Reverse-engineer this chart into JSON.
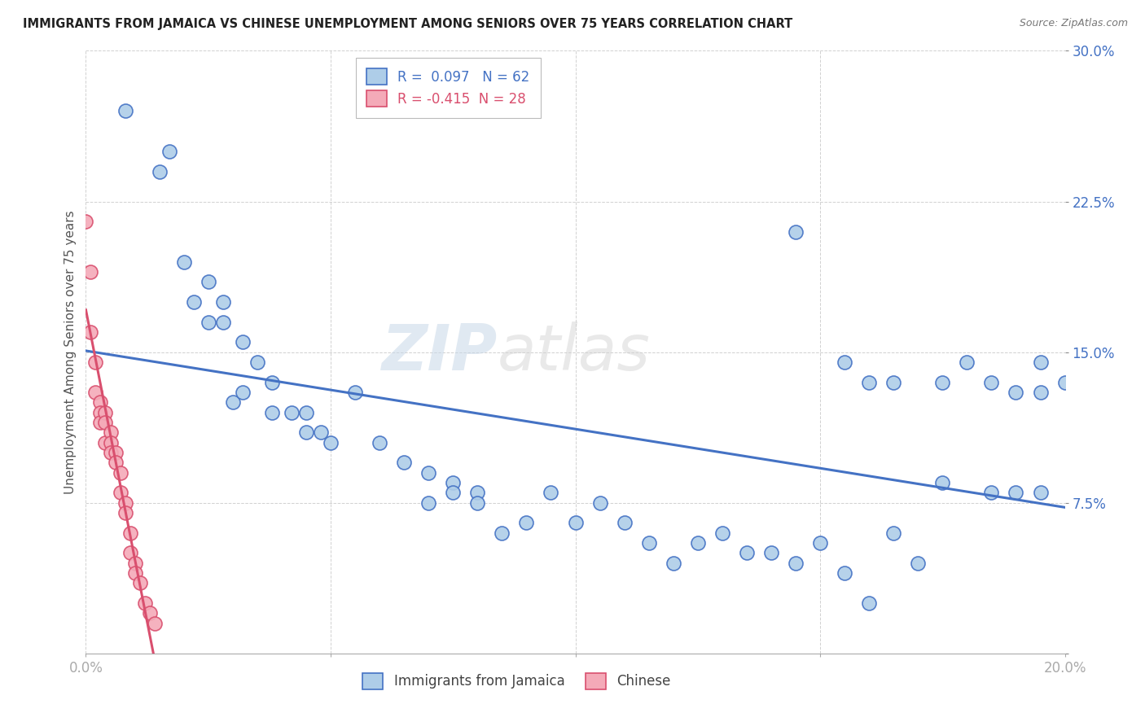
{
  "title": "IMMIGRANTS FROM JAMAICA VS CHINESE UNEMPLOYMENT AMONG SENIORS OVER 75 YEARS CORRELATION CHART",
  "source": "Source: ZipAtlas.com",
  "ylabel": "Unemployment Among Seniors over 75 years",
  "xlim": [
    0.0,
    0.2
  ],
  "ylim": [
    0.0,
    0.3
  ],
  "jamaica_r": 0.097,
  "jamaica_n": 62,
  "chinese_r": -0.415,
  "chinese_n": 28,
  "jamaica_color": "#aecde8",
  "chinese_color": "#f4aab8",
  "jamaica_line_color": "#4472c4",
  "chinese_line_color": "#d94f6e",
  "watermark_zip": "ZIP",
  "watermark_atlas": "atlas",
  "jamaica_points": [
    [
      0.008,
      0.27
    ],
    [
      0.015,
      0.24
    ],
    [
      0.017,
      0.25
    ],
    [
      0.02,
      0.195
    ],
    [
      0.022,
      0.175
    ],
    [
      0.025,
      0.185
    ],
    [
      0.025,
      0.165
    ],
    [
      0.028,
      0.175
    ],
    [
      0.028,
      0.165
    ],
    [
      0.03,
      0.125
    ],
    [
      0.032,
      0.13
    ],
    [
      0.032,
      0.155
    ],
    [
      0.035,
      0.145
    ],
    [
      0.038,
      0.135
    ],
    [
      0.038,
      0.12
    ],
    [
      0.042,
      0.12
    ],
    [
      0.045,
      0.12
    ],
    [
      0.045,
      0.11
    ],
    [
      0.048,
      0.11
    ],
    [
      0.05,
      0.105
    ],
    [
      0.055,
      0.13
    ],
    [
      0.06,
      0.105
    ],
    [
      0.065,
      0.095
    ],
    [
      0.07,
      0.075
    ],
    [
      0.07,
      0.09
    ],
    [
      0.075,
      0.085
    ],
    [
      0.075,
      0.08
    ],
    [
      0.08,
      0.08
    ],
    [
      0.08,
      0.075
    ],
    [
      0.085,
      0.06
    ],
    [
      0.09,
      0.065
    ],
    [
      0.095,
      0.08
    ],
    [
      0.1,
      0.065
    ],
    [
      0.105,
      0.075
    ],
    [
      0.11,
      0.065
    ],
    [
      0.115,
      0.055
    ],
    [
      0.12,
      0.045
    ],
    [
      0.125,
      0.055
    ],
    [
      0.13,
      0.06
    ],
    [
      0.135,
      0.05
    ],
    [
      0.14,
      0.05
    ],
    [
      0.145,
      0.045
    ],
    [
      0.15,
      0.055
    ],
    [
      0.155,
      0.04
    ],
    [
      0.16,
      0.025
    ],
    [
      0.165,
      0.06
    ],
    [
      0.17,
      0.045
    ],
    [
      0.175,
      0.085
    ],
    [
      0.145,
      0.21
    ],
    [
      0.155,
      0.145
    ],
    [
      0.16,
      0.135
    ],
    [
      0.165,
      0.135
    ],
    [
      0.175,
      0.135
    ],
    [
      0.18,
      0.145
    ],
    [
      0.185,
      0.135
    ],
    [
      0.19,
      0.13
    ],
    [
      0.195,
      0.13
    ],
    [
      0.2,
      0.135
    ],
    [
      0.195,
      0.145
    ],
    [
      0.185,
      0.08
    ],
    [
      0.19,
      0.08
    ],
    [
      0.195,
      0.08
    ]
  ],
  "chinese_points": [
    [
      0.0,
      0.215
    ],
    [
      0.001,
      0.19
    ],
    [
      0.001,
      0.16
    ],
    [
      0.002,
      0.145
    ],
    [
      0.002,
      0.13
    ],
    [
      0.003,
      0.125
    ],
    [
      0.003,
      0.12
    ],
    [
      0.003,
      0.115
    ],
    [
      0.004,
      0.12
    ],
    [
      0.004,
      0.115
    ],
    [
      0.004,
      0.105
    ],
    [
      0.005,
      0.11
    ],
    [
      0.005,
      0.105
    ],
    [
      0.005,
      0.1
    ],
    [
      0.006,
      0.1
    ],
    [
      0.006,
      0.095
    ],
    [
      0.007,
      0.09
    ],
    [
      0.007,
      0.08
    ],
    [
      0.008,
      0.075
    ],
    [
      0.008,
      0.07
    ],
    [
      0.009,
      0.06
    ],
    [
      0.009,
      0.05
    ],
    [
      0.01,
      0.045
    ],
    [
      0.01,
      0.04
    ],
    [
      0.011,
      0.035
    ],
    [
      0.012,
      0.025
    ],
    [
      0.013,
      0.02
    ],
    [
      0.014,
      0.015
    ]
  ]
}
